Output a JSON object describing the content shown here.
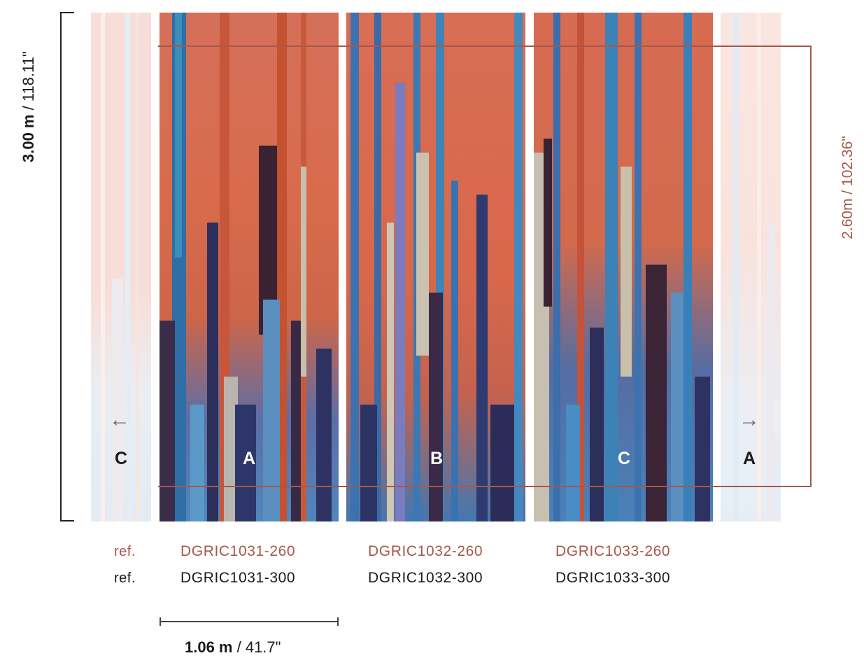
{
  "dimensions": {
    "total_height_bold": "3.00 m",
    "total_height_rest": " / 118.11\"",
    "inner_height": "2.60m / 102.36\"",
    "width_bold": "1.06 m",
    "width_rest": " / 41.7\""
  },
  "panel_letters": {
    "ghost_left": "C",
    "panel_a": "A",
    "panel_b": "B",
    "panel_c": "C",
    "ghost_right": "A"
  },
  "refs": {
    "label_260": "ref.",
    "label_300": "ref.",
    "panel_a_260": "DGRIC1031-260",
    "panel_a_300": "DGRIC1031-300",
    "panel_b_260": "DGRIC1032-260",
    "panel_b_300": "DGRIC1032-300",
    "panel_c_260": "DGRIC1033-260",
    "panel_c_300": "DGRIC1033-300"
  },
  "icons": {
    "left": "arrow-left-icon",
    "right": "arrow-right-icon"
  },
  "colors": {
    "accent": "#a5584a",
    "terracotta": "#d66a4f",
    "blue": "#3d6fa8",
    "navy": "#2b2f5e",
    "dark_aubergine": "#3a2430",
    "pale": "#c9c2b5"
  }
}
